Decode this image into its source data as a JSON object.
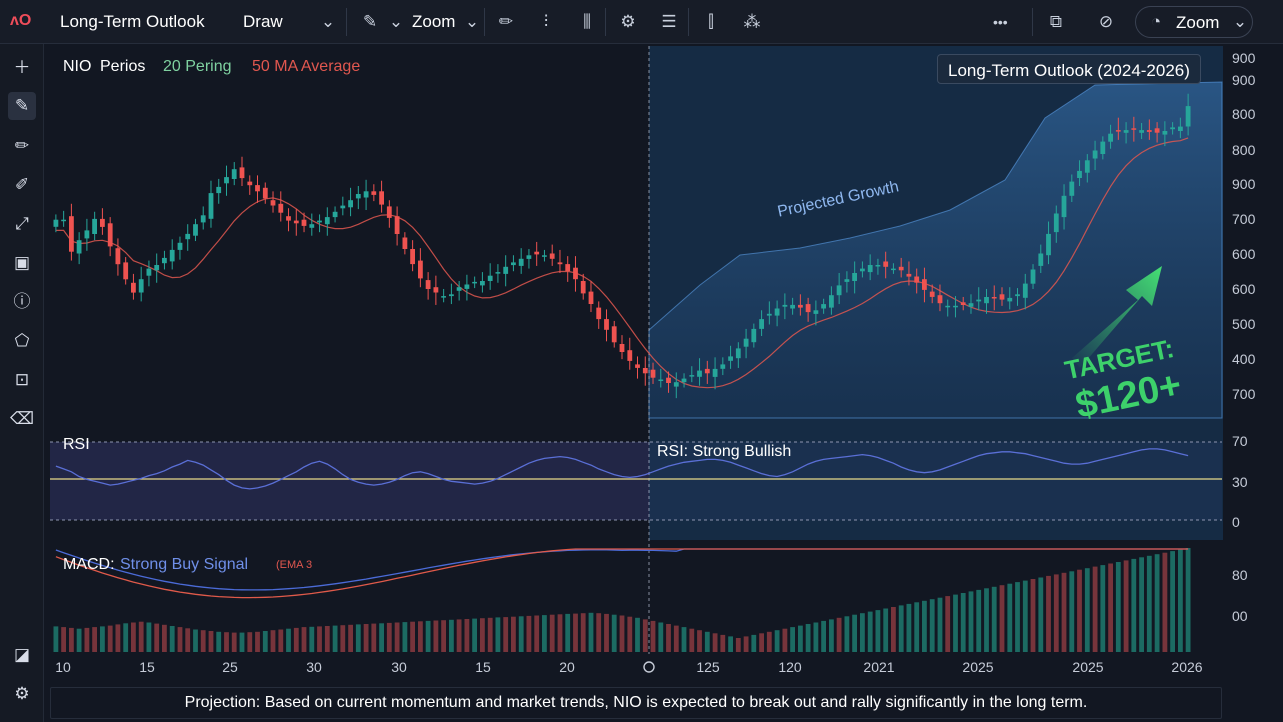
{
  "toolbar": {
    "logo": "ʌO",
    "title": "Long-Term Outlook",
    "draw_label": "Draw",
    "zoom_label": "Zoom",
    "zoom_right_label": "Zoom",
    "more_label": "•••"
  },
  "legend": {
    "symbol": "NIO",
    "period": "Perios",
    "ma20": "20 Pering",
    "ma50": "50 MA Average"
  },
  "outlook_box": "Long-Term Outlook (2024-2026)",
  "projected_label": "Projected Growth",
  "target_label_1": "TARGET:",
  "target_label_2": "$120+",
  "rsi_label": "RSI",
  "rsi_callout": "RSI: Strong Bullish",
  "macd_label": "MACD:",
  "macd_signal": "Strong Buy Signal",
  "macd_param": "(EMA 3",
  "footer_text": "Projection: Based on current momentum and market trends, NIO is expected to break out and rally significantly in the long term.",
  "colors": {
    "up": "#26a69a",
    "down": "#ef5350",
    "ma50": "#e0574f",
    "rsi_line": "#5a6fd6",
    "macd_line": "#4b6bd8",
    "signal_line": "#e05a4a",
    "accent_green": "#3dd16b"
  },
  "chart_data": {
    "type": "candlestick",
    "price_axis_ticks": [
      "900",
      "900",
      "800",
      "800",
      "900",
      "700",
      "600",
      "600",
      "500",
      "400",
      "700"
    ],
    "rsi_axis_ticks": [
      "70",
      "30",
      "0"
    ],
    "macd_axis_ticks": [
      "80",
      "00"
    ],
    "x_tick_labels": [
      "10",
      "15",
      "25",
      "30",
      "30",
      "15",
      "20",
      "125",
      "120",
      "2021",
      "2025",
      "2025",
      "2026"
    ],
    "closes": [
      700,
      700,
      664,
      677,
      688,
      701,
      692,
      670,
      650,
      633,
      618,
      633,
      645,
      649,
      657,
      666,
      674,
      684,
      695,
      705,
      730,
      737,
      748,
      757,
      747,
      739,
      732,
      724,
      716,
      708,
      699,
      696,
      693,
      695,
      699,
      703,
      709,
      716,
      722,
      729,
      732,
      728,
      717,
      702,
      684,
      667,
      650,
      634,
      622,
      618,
      614,
      616,
      624,
      627,
      630,
      631,
      637,
      641,
      647,
      652,
      656,
      660,
      661,
      660,
      656,
      650,
      642,
      633,
      617,
      605,
      588,
      576,
      562,
      551,
      541,
      533,
      527,
      522,
      520,
      516,
      517,
      521,
      525,
      530,
      527,
      532,
      537,
      546,
      555,
      566,
      577,
      588,
      594,
      600,
      604,
      604,
      601,
      596,
      598,
      605,
      615,
      626,
      633,
      640,
      645,
      649,
      649,
      647,
      645,
      643,
      636,
      629,
      621,
      613,
      606,
      603,
      603,
      604,
      606,
      610,
      613,
      612,
      610,
      612,
      616,
      628,
      644,
      662,
      684,
      707,
      727,
      743,
      755,
      767,
      778,
      788,
      797,
      800,
      801,
      802,
      801,
      799,
      798,
      800,
      804,
      805,
      828
    ],
    "rsi": [
      61,
      58,
      55,
      50,
      47,
      45,
      43,
      41,
      42,
      44,
      46,
      48,
      51,
      53,
      56,
      60,
      63,
      67,
      65,
      62,
      57,
      52,
      46,
      41,
      38,
      37,
      38,
      40,
      43,
      47,
      51,
      55,
      60,
      64,
      66,
      63,
      58,
      52,
      47,
      44,
      42,
      41,
      42,
      44,
      47,
      51,
      54,
      55,
      53,
      50,
      47,
      45,
      44,
      43,
      42,
      43,
      45,
      48,
      52,
      56,
      60,
      64,
      67,
      69,
      70,
      71,
      70,
      68,
      65,
      62,
      58,
      55,
      52,
      50,
      49,
      50,
      52,
      55,
      58,
      61,
      63,
      65,
      66,
      67,
      68,
      68,
      67,
      65,
      62,
      59,
      56,
      53,
      51,
      50,
      52,
      55,
      59,
      63,
      66,
      68,
      69,
      70,
      71,
      72,
      73,
      72,
      70,
      67,
      64,
      60,
      57,
      55,
      54,
      55,
      57,
      60,
      63,
      66,
      69,
      72,
      74,
      75,
      76,
      76,
      75,
      74,
      72,
      70,
      68,
      66,
      64,
      63,
      63,
      64,
      66,
      68,
      70,
      72,
      74,
      76,
      78,
      79,
      79,
      78,
      76,
      74,
      72
    ],
    "macd_hist": [
      -30,
      -28,
      -26,
      -24,
      -26,
      -28,
      -30,
      -32,
      -35,
      -38,
      -40,
      -42,
      -40,
      -37,
      -34,
      -31,
      -28,
      -25,
      -22,
      -20,
      -18,
      -16,
      -15,
      -14,
      -14,
      -15,
      -16,
      -18,
      -20,
      -22,
      -24,
      -26,
      -28,
      -29,
      -30,
      -31,
      -32,
      -33,
      -34,
      -35,
      -36,
      -37,
      -38,
      -39,
      -40,
      -41,
      -42,
      -43,
      -44,
      -45,
      -46,
      -47,
      -48,
      -49,
      -50,
      -51,
      -52,
      -53,
      -54,
      -55,
      -56,
      -57,
      -58,
      -59,
      -60,
      -61,
      -62,
      -63,
      -64,
      -65,
      -64,
      -62,
      -60,
      -58,
      -55,
      -52,
      -48,
      -44,
      -40,
      -36,
      -32,
      -28,
      -24,
      -20,
      -16,
      -12,
      -8,
      -4,
      0,
      4,
      8,
      12,
      16,
      20,
      24,
      28,
      32,
      36,
      40,
      44,
      48,
      52,
      56,
      60,
      64,
      68,
      72,
      76,
      80,
      84,
      88,
      92,
      96,
      100,
      104,
      108,
      112,
      116,
      120,
      124,
      128,
      132,
      136,
      140,
      144,
      148,
      152,
      156,
      160,
      164,
      168,
      172,
      176,
      180,
      184,
      188,
      192,
      196,
      200,
      204,
      208,
      212,
      216,
      220,
      224,
      228,
      232
    ]
  }
}
